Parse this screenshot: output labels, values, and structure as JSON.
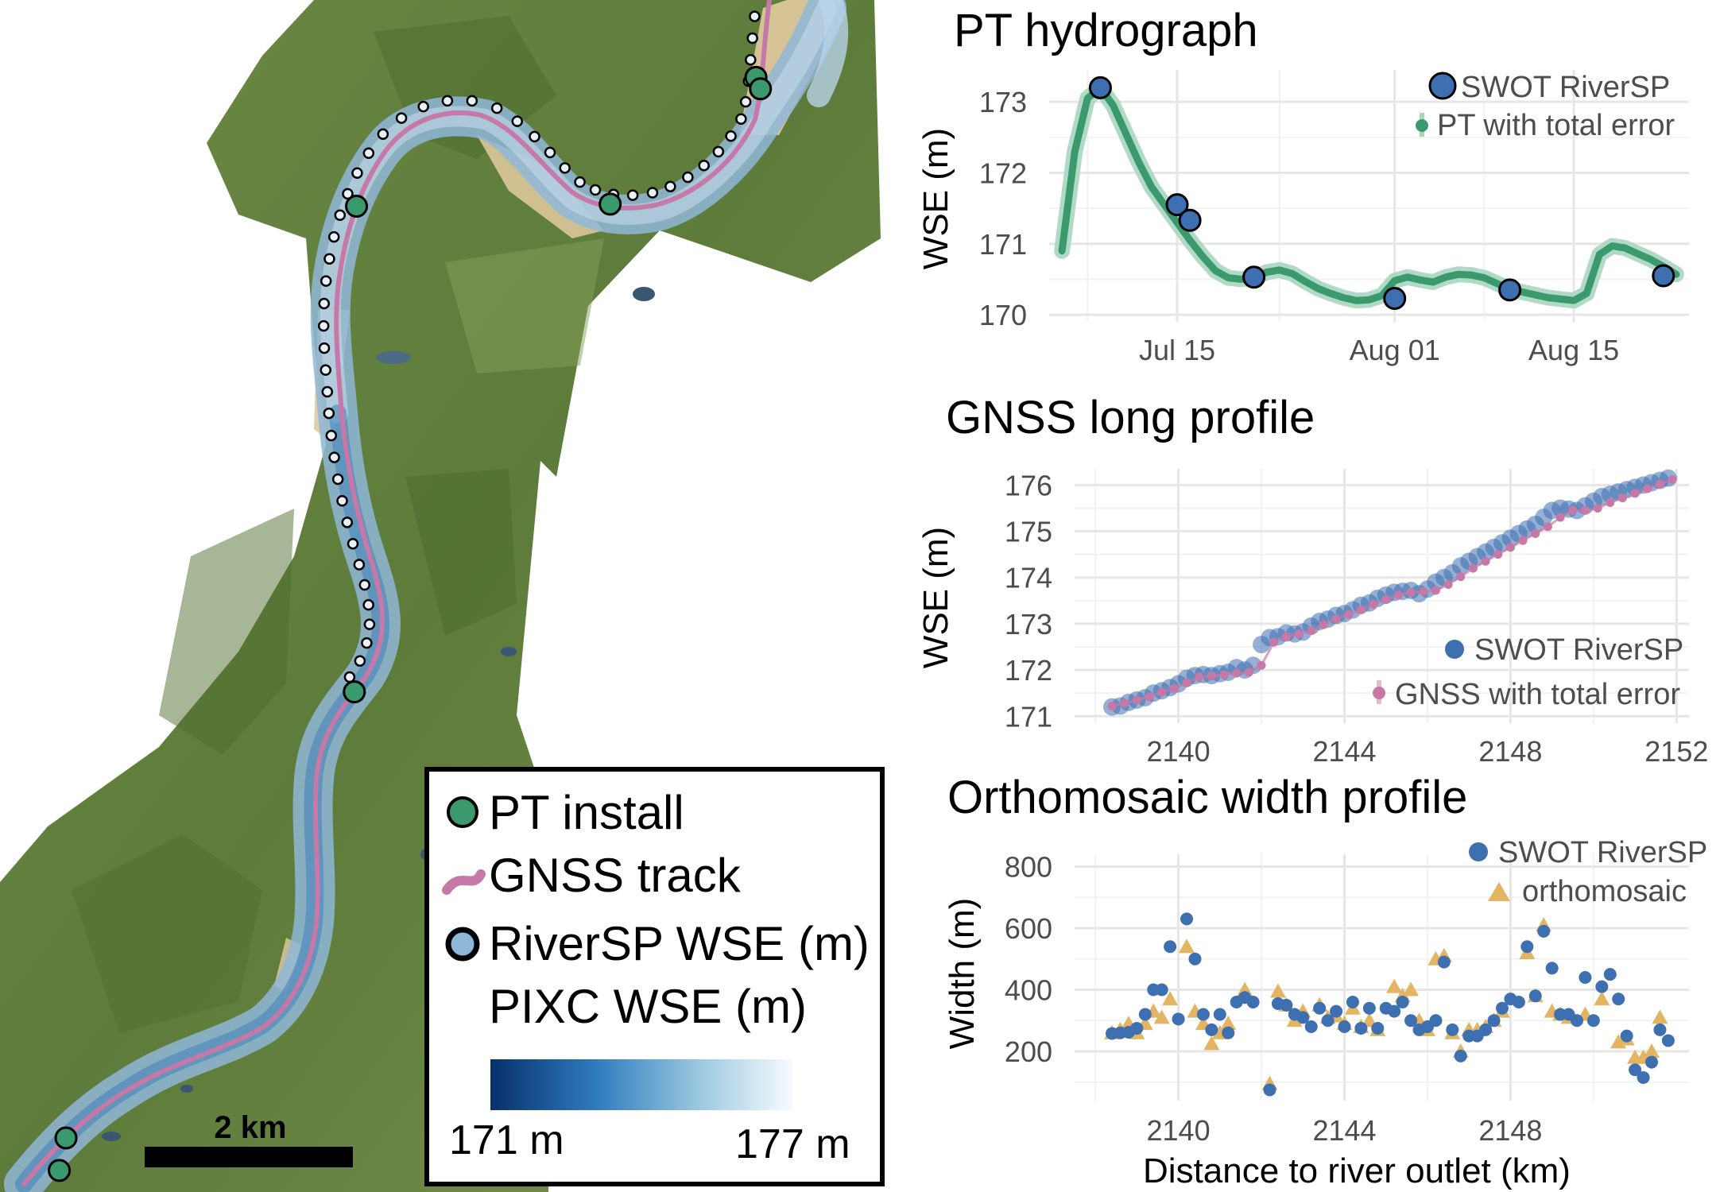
{
  "map": {
    "legend": {
      "pt_install": "PT install",
      "gnss_track": "GNSS track",
      "riversp_wse": "RiverSP WSE (m)",
      "pixc_wse": "PIXC WSE (m)",
      "ramp_min": "171 m",
      "ramp_max": "177 m",
      "ramp_colors": [
        "#08306b",
        "#2f7bbf",
        "#9ecae1",
        "#f7fbff"
      ]
    },
    "scale_bar_label": "2 km",
    "colors": {
      "pt_install": "#3a9a6e",
      "gnss_track": "#c679a6",
      "riversp_outline": "#111111",
      "forest": "#5f7d3a",
      "river_water": "#8fb7d8",
      "sandbar": "#dcc79a"
    }
  },
  "chart_data": [
    {
      "id": "pt-hydrograph",
      "type": "line",
      "title": "PT hydrograph",
      "xlabel": "",
      "ylabel": "WSE (m)",
      "x_ticks": [
        "Jul 15",
        "Aug 01",
        "Aug 15"
      ],
      "x_tick_values": [
        "2023-07-15",
        "2023-08-01",
        "2023-08-15"
      ],
      "xlim": [
        "2023-07-05",
        "2023-08-24"
      ],
      "ylim": [
        169.9,
        173.45
      ],
      "y_ticks": [
        170,
        171,
        172,
        173
      ],
      "grid": true,
      "legend_position": "top-right",
      "legend": [
        "SWOT RiverSP",
        "PT with total error"
      ],
      "series": [
        {
          "name": "PT with total error",
          "color": "#3a9a6e",
          "x": [
            "2023-07-06",
            "2023-07-07",
            "2023-07-08",
            "2023-07-09",
            "2023-07-10",
            "2023-07-11",
            "2023-07-12",
            "2023-07-13",
            "2023-07-14",
            "2023-07-15",
            "2023-07-16",
            "2023-07-17",
            "2023-07-18",
            "2023-07-19",
            "2023-07-20",
            "2023-07-21",
            "2023-07-22",
            "2023-07-23",
            "2023-07-24",
            "2023-07-25",
            "2023-07-26",
            "2023-07-27",
            "2023-07-28",
            "2023-07-29",
            "2023-07-30",
            "2023-07-31",
            "2023-08-01",
            "2023-08-02",
            "2023-08-03",
            "2023-08-04",
            "2023-08-05",
            "2023-08-06",
            "2023-08-07",
            "2023-08-08",
            "2023-08-09",
            "2023-08-10",
            "2023-08-11",
            "2023-08-12",
            "2023-08-13",
            "2023-08-14",
            "2023-08-15",
            "2023-08-16",
            "2023-08-17",
            "2023-08-18",
            "2023-08-19",
            "2023-08-20",
            "2023-08-21",
            "2023-08-22",
            "2023-08-23"
          ],
          "y": [
            170.9,
            172.3,
            173.05,
            173.2,
            172.95,
            172.55,
            172.15,
            171.8,
            171.55,
            171.3,
            171.05,
            170.82,
            170.62,
            170.52,
            170.5,
            170.52,
            170.6,
            170.63,
            170.58,
            170.47,
            170.37,
            170.3,
            170.24,
            170.2,
            170.21,
            170.27,
            170.48,
            170.53,
            170.49,
            170.46,
            170.53,
            170.57,
            170.56,
            170.52,
            170.44,
            170.36,
            170.32,
            170.28,
            170.24,
            170.22,
            170.2,
            170.3,
            170.85,
            170.97,
            170.94,
            170.86,
            170.78,
            170.68,
            170.57
          ]
        },
        {
          "name": "SWOT RiverSP",
          "color": "#3e6fb0",
          "x": [
            "2023-07-09",
            "2023-07-15",
            "2023-07-16",
            "2023-07-21",
            "2023-08-01",
            "2023-08-10",
            "2023-08-22"
          ],
          "y": [
            173.2,
            171.55,
            171.33,
            170.53,
            170.23,
            170.35,
            170.55
          ]
        }
      ]
    },
    {
      "id": "gnss-long-profile",
      "type": "scatter",
      "title": "GNSS long profile",
      "xlabel": "",
      "ylabel": "WSE (m)",
      "xlim": [
        2137.5,
        2152.3
      ],
      "ylim": [
        170.85,
        176.35
      ],
      "x_ticks": [
        2140,
        2144,
        2148,
        2152
      ],
      "y_ticks": [
        171,
        172,
        173,
        174,
        175,
        176
      ],
      "grid": true,
      "legend_position": "bottom-right",
      "legend": [
        "SWOT RiverSP",
        "GNSS with total error"
      ],
      "series": [
        {
          "name": "SWOT RiverSP",
          "color": "#3e6fb0",
          "x": [
            2138.4,
            2138.6,
            2138.8,
            2139.0,
            2139.2,
            2139.4,
            2139.6,
            2139.8,
            2140.0,
            2140.2,
            2140.4,
            2140.6,
            2140.8,
            2141.0,
            2141.2,
            2141.4,
            2141.6,
            2141.8,
            2142.0,
            2142.2,
            2142.4,
            2142.6,
            2142.8,
            2143.0,
            2143.2,
            2143.4,
            2143.6,
            2143.8,
            2144.0,
            2144.2,
            2144.4,
            2144.6,
            2144.8,
            2145.0,
            2145.2,
            2145.4,
            2145.6,
            2145.8,
            2146.0,
            2146.2,
            2146.4,
            2146.6,
            2146.8,
            2147.0,
            2147.2,
            2147.4,
            2147.6,
            2147.8,
            2148.0,
            2148.2,
            2148.4,
            2148.6,
            2148.8,
            2149.0,
            2149.2,
            2149.4,
            2149.6,
            2149.8,
            2150.0,
            2150.2,
            2150.4,
            2150.6,
            2150.8,
            2151.0,
            2151.2,
            2151.4,
            2151.6,
            2151.8
          ],
          "y": [
            171.2,
            171.22,
            171.3,
            171.35,
            171.4,
            171.5,
            171.55,
            171.62,
            171.7,
            171.82,
            171.88,
            171.9,
            171.88,
            171.92,
            171.95,
            172.05,
            172.0,
            172.1,
            172.55,
            172.7,
            172.72,
            172.8,
            172.78,
            172.82,
            172.95,
            173.05,
            173.1,
            173.18,
            173.22,
            173.3,
            173.4,
            173.45,
            173.55,
            173.62,
            173.68,
            173.7,
            173.72,
            173.65,
            173.75,
            173.9,
            174.0,
            174.1,
            174.25,
            174.35,
            174.45,
            174.55,
            174.65,
            174.75,
            174.85,
            174.95,
            175.05,
            175.15,
            175.3,
            175.45,
            175.5,
            175.48,
            175.45,
            175.55,
            175.65,
            175.75,
            175.8,
            175.85,
            175.9,
            175.95,
            176.0,
            176.05,
            176.1,
            176.15
          ]
        },
        {
          "name": "GNSS with total error",
          "color": "#c679a6",
          "x": [
            2138.4,
            2138.7,
            2139.0,
            2139.3,
            2139.6,
            2139.9,
            2140.2,
            2140.5,
            2140.8,
            2141.1,
            2141.4,
            2141.7,
            2142.0,
            2142.3,
            2142.6,
            2142.9,
            2143.2,
            2143.5,
            2143.8,
            2144.1,
            2144.4,
            2144.7,
            2145.0,
            2145.3,
            2145.6,
            2145.9,
            2146.2,
            2146.5,
            2146.8,
            2147.1,
            2147.4,
            2147.7,
            2148.0,
            2148.3,
            2148.6,
            2148.9,
            2149.2,
            2149.5,
            2149.8,
            2150.1,
            2150.4,
            2150.7,
            2151.0,
            2151.3,
            2151.6,
            2151.9
          ],
          "y": [
            171.22,
            171.28,
            171.35,
            171.42,
            171.52,
            171.6,
            171.72,
            171.85,
            171.87,
            171.9,
            171.93,
            171.95,
            172.1,
            172.6,
            172.72,
            172.78,
            172.85,
            172.98,
            173.1,
            173.2,
            173.3,
            173.42,
            173.52,
            173.62,
            173.68,
            173.7,
            173.72,
            173.85,
            174.02,
            174.2,
            174.35,
            174.5,
            174.65,
            174.8,
            174.95,
            175.1,
            175.3,
            175.45,
            175.45,
            175.5,
            175.62,
            175.72,
            175.82,
            175.92,
            176.02,
            176.12
          ]
        }
      ]
    },
    {
      "id": "orthomosaic-width-profile",
      "type": "scatter",
      "title": "Orthomosaic width profile",
      "xlabel": "Distance to river outlet (km)",
      "ylabel": "Width (m)",
      "xlim": [
        2137.5,
        2152.3
      ],
      "ylim": [
        40,
        840
      ],
      "x_ticks": [
        2140,
        2144,
        2148
      ],
      "y_ticks": [
        200,
        400,
        600,
        800
      ],
      "grid": true,
      "legend_position": "top-right",
      "legend": [
        "SWOT RiverSP",
        "orthomosaic"
      ],
      "series": [
        {
          "name": "SWOT RiverSP",
          "color": "#3e6fb0",
          "x": [
            2138.4,
            2138.6,
            2138.8,
            2139.0,
            2139.2,
            2139.4,
            2139.6,
            2139.8,
            2140.0,
            2140.2,
            2140.4,
            2140.6,
            2140.8,
            2141.0,
            2141.2,
            2141.4,
            2141.6,
            2141.8,
            2142.2,
            2142.4,
            2142.6,
            2142.8,
            2143.0,
            2143.2,
            2143.4,
            2143.6,
            2143.8,
            2144.0,
            2144.2,
            2144.4,
            2144.6,
            2144.8,
            2145.0,
            2145.2,
            2145.4,
            2145.6,
            2145.8,
            2146.0,
            2146.2,
            2146.4,
            2146.6,
            2146.8,
            2147.0,
            2147.2,
            2147.4,
            2147.6,
            2147.8,
            2148.0,
            2148.2,
            2148.4,
            2148.6,
            2148.8,
            2149.0,
            2149.2,
            2149.4,
            2149.6,
            2149.8,
            2150.0,
            2150.2,
            2150.4,
            2150.6,
            2150.8,
            2151.0,
            2151.2,
            2151.4,
            2151.6,
            2151.8
          ],
          "y": [
            258,
            260,
            262,
            275,
            320,
            400,
            400,
            540,
            305,
            630,
            500,
            320,
            270,
            320,
            260,
            360,
            375,
            360,
            75,
            355,
            350,
            320,
            310,
            280,
            340,
            300,
            330,
            280,
            360,
            275,
            340,
            275,
            340,
            330,
            360,
            300,
            270,
            280,
            300,
            490,
            270,
            185,
            250,
            250,
            270,
            300,
            340,
            370,
            360,
            540,
            380,
            590,
            470,
            320,
            320,
            300,
            440,
            300,
            410,
            450,
            370,
            250,
            140,
            115,
            165,
            270,
            235
          ]
        },
        {
          "name": "orthomosaic",
          "color": "#e3b461",
          "x": [
            2138.4,
            2138.6,
            2138.8,
            2139.0,
            2139.2,
            2139.4,
            2139.6,
            2139.8,
            2140.2,
            2140.4,
            2140.6,
            2140.8,
            2141.0,
            2141.2,
            2141.6,
            2142.2,
            2142.4,
            2142.6,
            2142.8,
            2143.0,
            2143.4,
            2143.6,
            2143.8,
            2144.0,
            2144.2,
            2144.4,
            2144.6,
            2144.8,
            2145.2,
            2145.4,
            2145.6,
            2145.8,
            2146.0,
            2146.2,
            2146.4,
            2146.6,
            2146.8,
            2147.0,
            2147.2,
            2147.4,
            2147.6,
            2147.8,
            2148.4,
            2148.6,
            2148.8,
            2149.0,
            2149.2,
            2149.4,
            2149.8,
            2150.2,
            2150.6,
            2150.8,
            2151.0,
            2151.2,
            2151.4,
            2151.6
          ],
          "y": [
            260,
            270,
            290,
            260,
            290,
            330,
            310,
            370,
            540,
            330,
            290,
            225,
            260,
            290,
            400,
            95,
            395,
            350,
            300,
            330,
            350,
            310,
            315,
            290,
            340,
            280,
            300,
            270,
            410,
            380,
            400,
            300,
            270,
            500,
            510,
            260,
            200,
            270,
            270,
            280,
            300,
            330,
            520,
            380,
            610,
            330,
            320,
            310,
            320,
            370,
            230,
            240,
            180,
            180,
            200,
            310
          ]
        }
      ]
    }
  ]
}
